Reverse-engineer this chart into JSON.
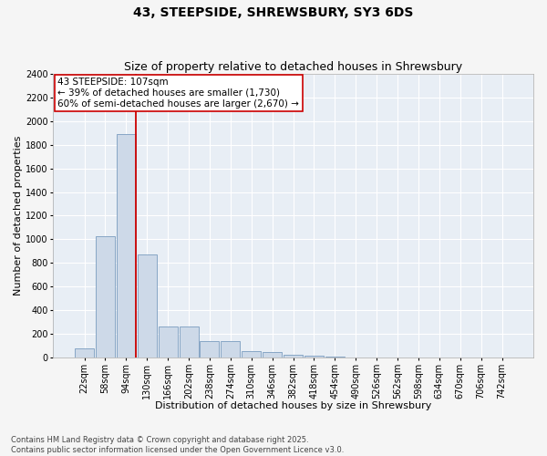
{
  "title": "43, STEEPSIDE, SHREWSBURY, SY3 6DS",
  "subtitle": "Size of property relative to detached houses in Shrewsbury",
  "xlabel": "Distribution of detached houses by size in Shrewsbury",
  "ylabel": "Number of detached properties",
  "bins": [
    "22sqm",
    "58sqm",
    "94sqm",
    "130sqm",
    "166sqm",
    "202sqm",
    "238sqm",
    "274sqm",
    "310sqm",
    "346sqm",
    "382sqm",
    "418sqm",
    "454sqm",
    "490sqm",
    "526sqm",
    "562sqm",
    "598sqm",
    "634sqm",
    "670sqm",
    "706sqm",
    "742sqm"
  ],
  "values": [
    80,
    1030,
    1890,
    870,
    265,
    265,
    140,
    140,
    60,
    45,
    25,
    15,
    10,
    0,
    0,
    0,
    0,
    0,
    0,
    0,
    0
  ],
  "bar_color": "#cdd9e8",
  "bar_edge_color": "#7a9cbf",
  "vline_color": "#cc0000",
  "annotation_text": "43 STEEPSIDE: 107sqm\n← 39% of detached houses are smaller (1,730)\n60% of semi-detached houses are larger (2,670) →",
  "annotation_box_color": "#ffffff",
  "annotation_box_edge": "#cc0000",
  "ylim": [
    0,
    2400
  ],
  "yticks": [
    0,
    200,
    400,
    600,
    800,
    1000,
    1200,
    1400,
    1600,
    1800,
    2000,
    2200,
    2400
  ],
  "plot_bg_color": "#e8eef5",
  "fig_bg_color": "#f5f5f5",
  "grid_color": "#ffffff",
  "footer": "Contains HM Land Registry data © Crown copyright and database right 2025.\nContains public sector information licensed under the Open Government Licence v3.0.",
  "title_fontsize": 10,
  "subtitle_fontsize": 9,
  "axis_label_fontsize": 8,
  "tick_fontsize": 7,
  "annotation_fontsize": 7.5,
  "footer_fontsize": 6
}
